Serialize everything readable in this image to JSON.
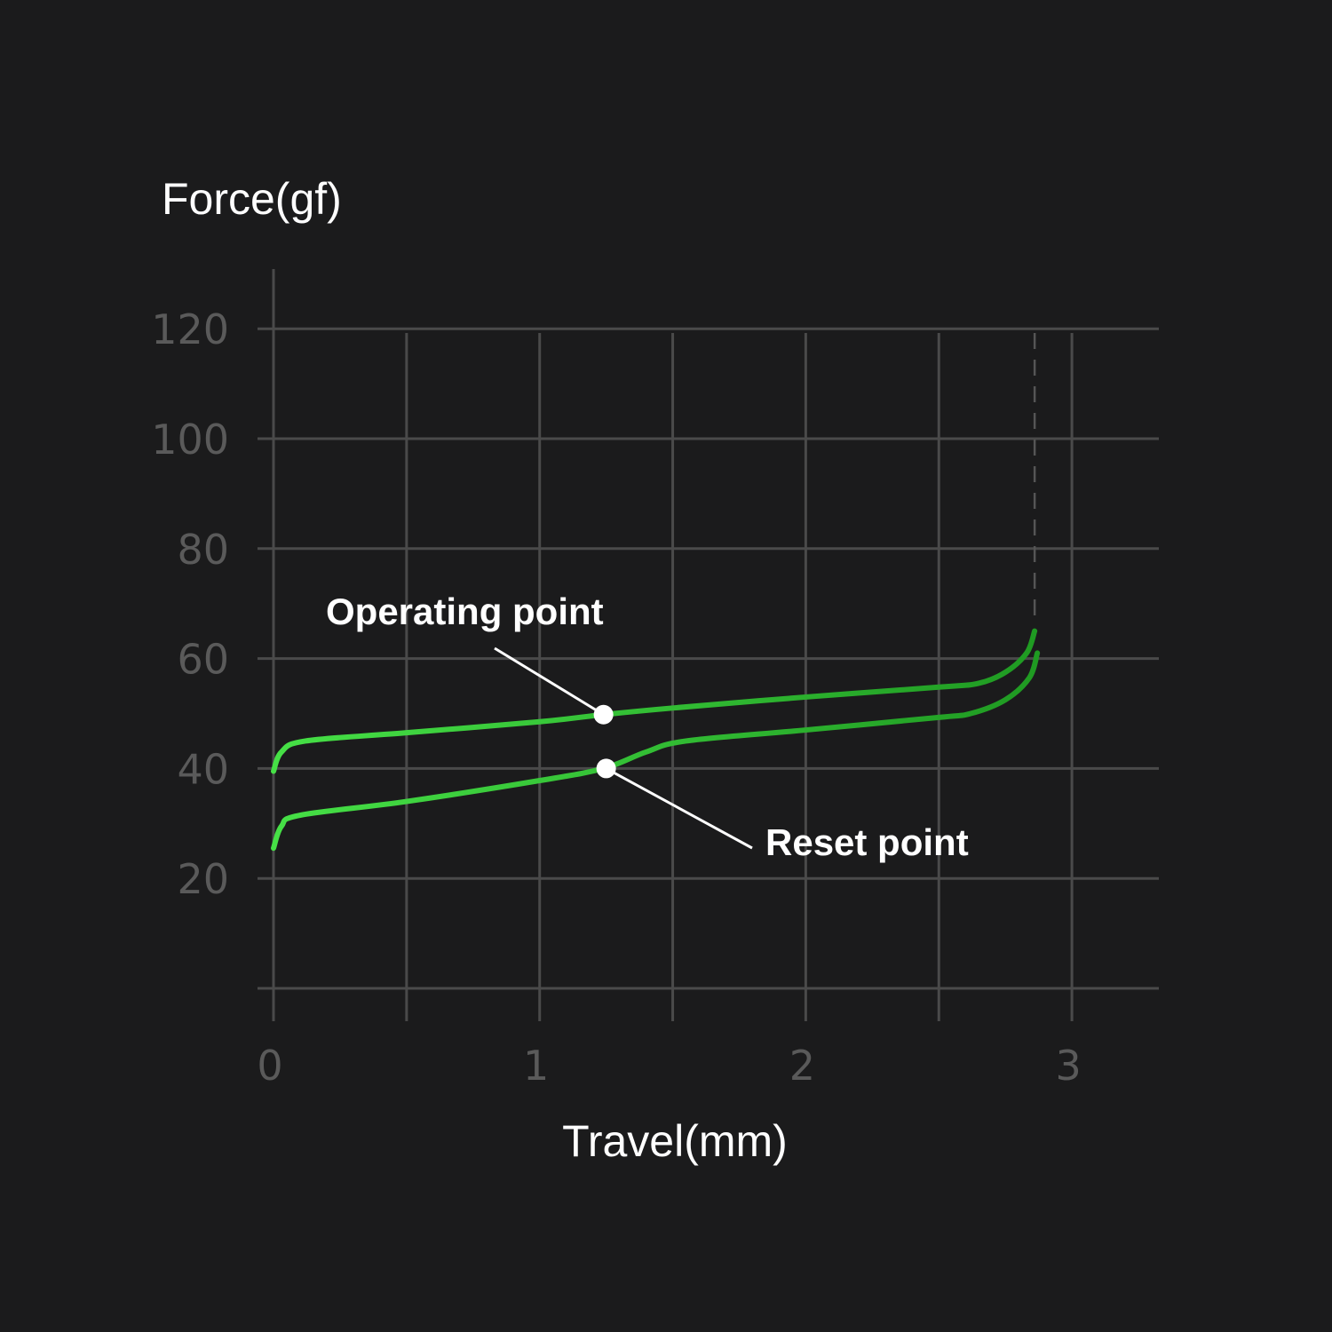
{
  "chart_data": {
    "type": "line",
    "ylabel": "Force(gf)",
    "xlabel": "Travel(mm)",
    "xlim": [
      0,
      3.3
    ],
    "ylim": [
      0,
      120
    ],
    "x_ticks": [
      "0",
      "1",
      "2",
      "3"
    ],
    "y_ticks": [
      "120",
      "100",
      "80",
      "60",
      "40",
      "20"
    ],
    "grid": true,
    "x_grid_step": 0.5,
    "y_grid_step": 20,
    "bottom_out_marker_x": 2.86,
    "series": [
      {
        "colors": [
          "#46e046",
          "#1f9a22"
        ],
        "points": [
          [
            0,
            39.5
          ],
          [
            0.03,
            43
          ],
          [
            0.12,
            45
          ],
          [
            0.5,
            46.5
          ],
          [
            1,
            48.5
          ],
          [
            1.24,
            49.8
          ],
          [
            1.5,
            51
          ],
          [
            2,
            53
          ],
          [
            2.5,
            54.8
          ],
          [
            2.65,
            55.5
          ],
          [
            2.75,
            57.5
          ],
          [
            2.83,
            61
          ],
          [
            2.86,
            65
          ]
        ]
      },
      {
        "colors": [
          "#46e046",
          "#1f9a22"
        ],
        "points": [
          [
            0,
            25.5
          ],
          [
            0.03,
            29.5
          ],
          [
            0.1,
            31.5
          ],
          [
            0.5,
            34
          ],
          [
            1,
            37.8
          ],
          [
            1.24,
            40
          ],
          [
            1.4,
            43
          ],
          [
            1.55,
            45
          ],
          [
            2,
            47
          ],
          [
            2.5,
            49.3
          ],
          [
            2.62,
            50
          ],
          [
            2.75,
            52.5
          ],
          [
            2.84,
            56.5
          ],
          [
            2.87,
            61
          ]
        ]
      }
    ],
    "annotations": [
      {
        "label": "Operating point",
        "x": 1.24,
        "y": 49.8
      },
      {
        "label": "Reset point",
        "x": 1.25,
        "y": 40
      }
    ]
  }
}
